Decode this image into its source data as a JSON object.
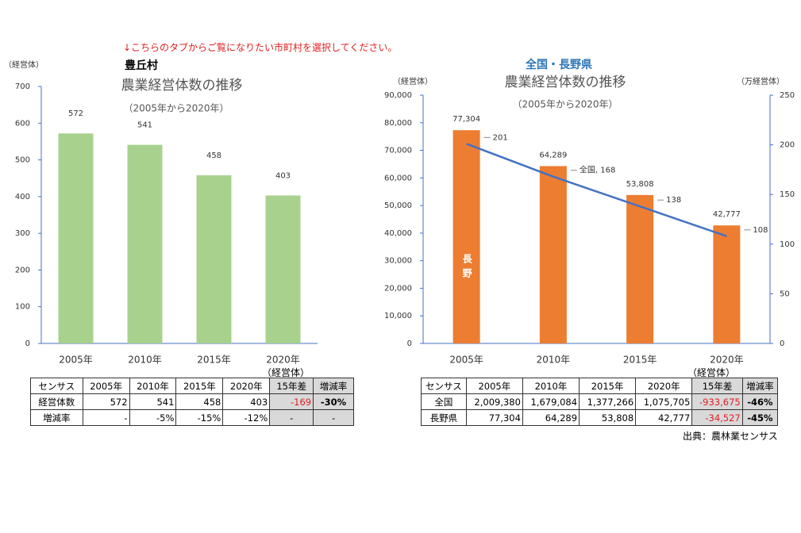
{
  "notice": "↓こちらのタブからご覧になりたい市町村を選択してください。",
  "chart_data": [
    {
      "type": "bar",
      "heading": "豊丘村",
      "title": "農業経営体数の推移",
      "subtitle": "（2005年から2020年）",
      "y_label": "（経営体）",
      "categories": [
        "2005年",
        "2010年",
        "2015年",
        "2020年"
      ],
      "values": [
        572,
        541,
        458,
        403
      ],
      "color": "#a9d18e",
      "ylim": [
        0,
        700
      ],
      "yticks": [
        0,
        100,
        200,
        300,
        400,
        500,
        600,
        700
      ]
    },
    {
      "type": "bar-line",
      "heading": "全国・長野県",
      "title": "農業経営体数の推移",
      "subtitle": "（2005年から2020年）",
      "y_label": "（経営体）",
      "y2_label": "（万経営体）",
      "categories": [
        "2005年",
        "2010年",
        "2015年",
        "2020年"
      ],
      "series": [
        {
          "name": "長野",
          "color": "#ed7d31",
          "values": [
            77304,
            64289,
            53808,
            42777
          ],
          "value_labels": [
            "77,304",
            "64,289",
            "53,808",
            "42,777"
          ]
        },
        {
          "name": "全国",
          "color": "#4472c4",
          "axis": "y2",
          "values": [
            201,
            168,
            138,
            108
          ],
          "value_labels": [
            "201",
            "全国, 168",
            "138",
            "108"
          ]
        }
      ],
      "ylim": [
        0,
        90000
      ],
      "yticks": [
        0,
        {
          "value": 10000,
          "label": "10,000"
        },
        {
          "value": 20000,
          "label": "20,000"
        },
        {
          "value": 30000,
          "label": "30,000"
        },
        {
          "value": 40000,
          "label": "40,000"
        },
        {
          "value": 50000,
          "label": "50,000"
        },
        {
          "value": 60000,
          "label": "60,000"
        },
        {
          "value": 70000,
          "label": "70,000"
        },
        {
          "value": 80000,
          "label": "80,000"
        },
        {
          "value": 90000,
          "label": "90,000"
        }
      ],
      "y2lim": [
        0,
        250
      ],
      "y2ticks": [
        0,
        50,
        100,
        150,
        200,
        250
      ]
    }
  ],
  "tables": [
    {
      "unit": "（経営体）",
      "header": [
        "センサス",
        "2005年",
        "2010年",
        "2015年",
        "2020年",
        "15年差",
        "増減率"
      ],
      "rows": [
        [
          "経営体数",
          "572",
          "541",
          "458",
          "403",
          "-169",
          "-30%"
        ],
        [
          "増減率",
          "-",
          "-5%",
          "-15%",
          "-12%",
          "-",
          "-"
        ]
      ]
    },
    {
      "unit": "（経営体）",
      "header": [
        "センサス",
        "2005年",
        "2010年",
        "2015年",
        "2020年",
        "15年差",
        "増減率"
      ],
      "rows": [
        [
          "全国",
          "2,009,380",
          "1,679,084",
          "1,377,266",
          "1,075,705",
          "-933,675",
          "-46%"
        ],
        [
          "長野県",
          "77,304",
          "64,289",
          "53,808",
          "42,777",
          "-34,527",
          "-45%"
        ]
      ]
    }
  ],
  "source": "出典：農林業センサス"
}
